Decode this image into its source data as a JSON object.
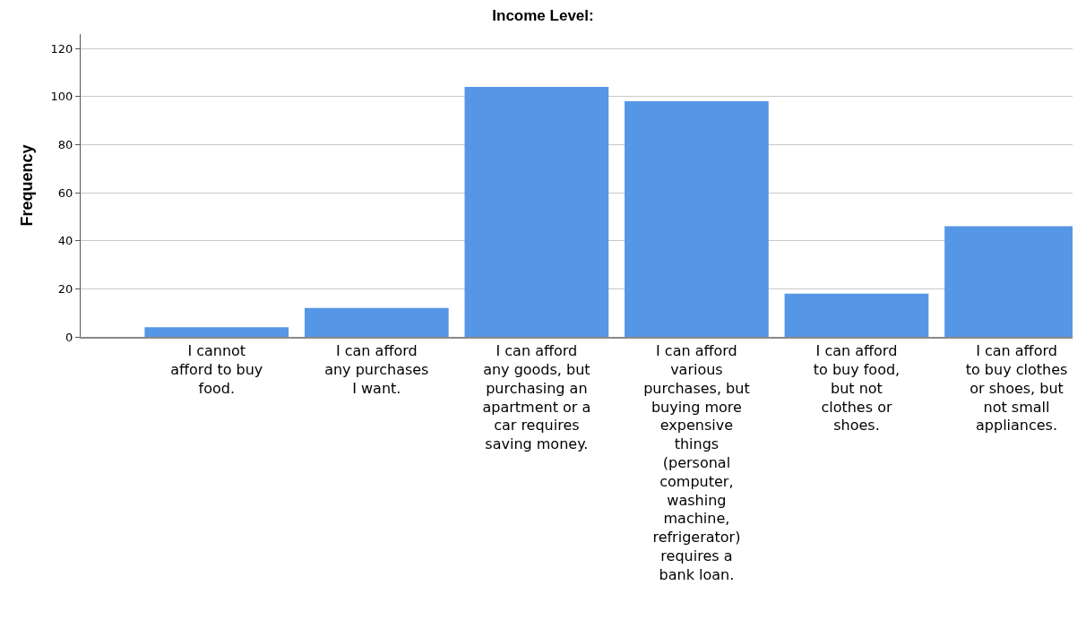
{
  "chart_data": {
    "type": "bar",
    "title": "Income Level:",
    "ylabel": "Frequency",
    "categories": [
      "I cannot afford to buy food.",
      "I can afford any purchases I want.",
      "I can afford any goods, but purchasing an apartment or a car requires saving money.",
      "I can afford various purchases, but buying more expensive things (personal computer, washing machine, refrigerator) requires a bank loan.",
      "I can afford to buy food, but not clothes or shoes.",
      "I can afford to buy clothes or shoes, but not small appliances."
    ],
    "values": [
      4,
      12,
      104,
      98,
      18,
      46
    ],
    "color": "#5596e6",
    "ylim": [
      0,
      126
    ],
    "yticks": [
      0,
      20,
      40,
      60,
      80,
      100,
      120
    ],
    "grid": "y"
  }
}
